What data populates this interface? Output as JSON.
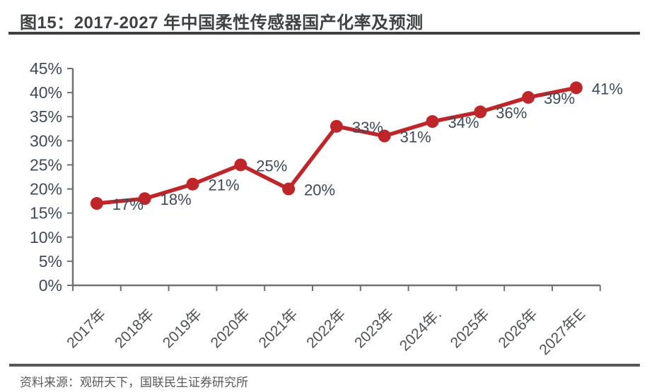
{
  "header": {
    "title": "图15：2017-2027 年中国柔性传感器国产化率及预测"
  },
  "footer": {
    "source": "资料来源：观研天下，国联民生证券研究所"
  },
  "colors": {
    "accent_red": "#bf2629",
    "title_text": "#3f4245",
    "title_rule": "#3d4044",
    "footer_rule": "#54585c",
    "source_text": "#595959",
    "axis": "#6e7176",
    "y_label": "#3e4a58",
    "x_label": "#4e5156",
    "data_label": "#3e4a58",
    "background": "#ffffff"
  },
  "chart_data": {
    "type": "line",
    "title": "图15：2017-2027 年中国柔性传感器国产化率及预测",
    "categories": [
      "2017年",
      "2018年",
      "2019年",
      "2020年",
      "2021年",
      "2022年",
      "2023年",
      "2024年.",
      "2025年",
      "2026年",
      "2027年E"
    ],
    "values": [
      17,
      18,
      21,
      25,
      20,
      33,
      31,
      34,
      36,
      39,
      41
    ],
    "data_labels": [
      "17%",
      "18%",
      "21%",
      "25%",
      "20%",
      "33%",
      "31%",
      "34%",
      "36%",
      "39%",
      "41%"
    ],
    "xlabel": "",
    "ylabel": "",
    "ylim": [
      0,
      45
    ],
    "ytick_step": 5,
    "ytick_labels": [
      "0%",
      "5%",
      "10%",
      "15%",
      "20%",
      "25%",
      "30%",
      "35%",
      "40%",
      "45%"
    ],
    "grid": false,
    "legend_position": "none",
    "marker": "circle",
    "unit": "percent"
  }
}
